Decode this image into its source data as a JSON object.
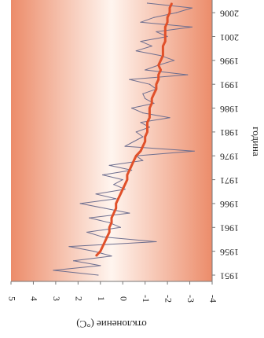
{
  "chart_data": {
    "type": "line",
    "orientation": "rotated-90-clockwise",
    "xlabel": "година",
    "ylabel": "отклонение (°C)",
    "xlim": [
      1951,
      2008
    ],
    "ylim": [
      -4,
      5
    ],
    "x_ticks": [
      1951,
      1956,
      1961,
      1966,
      1971,
      1976,
      1981,
      1986,
      1991,
      1996,
      2001,
      2006
    ],
    "y_ticks": [
      -4,
      -3,
      -2,
      -1,
      0,
      1,
      2,
      3,
      4,
      5
    ],
    "y_tick_labels": [
      "-4",
      "-3",
      "-2",
      "-1",
      "0",
      "1",
      "2",
      "3",
      "4",
      "5"
    ],
    "grid": false,
    "colors": {
      "annual_line": "#6f6f8f",
      "smoothed_line": "#e0502a",
      "band_edge": "#ec8c6a",
      "band_center": "#fff5ef"
    },
    "series": [
      {
        "style": "thin",
        "x": [
          1951,
          1952,
          1953,
          1954,
          1955,
          1956,
          1957,
          1958,
          1959,
          1960,
          1961,
          1962,
          1963,
          1964,
          1965,
          1966,
          1967,
          1968,
          1969,
          1970,
          1971,
          1972,
          1973,
          1974,
          1975,
          1976,
          1977,
          1978,
          1979,
          1980,
          1981,
          1982,
          1983,
          1984,
          1985,
          1986,
          1987,
          1988,
          1989,
          1990,
          1991,
          1992,
          1993,
          1994,
          1995,
          1996,
          1997,
          1998,
          1999,
          2000,
          2001,
          2002,
          2003,
          2004,
          2005,
          2006,
          2007,
          2008
        ],
        "values": [
          1.1,
          3.1,
          1.0,
          2.2,
          0.5,
          1.3,
          2.4,
          -1.5,
          0.9,
          1.6,
          0.1,
          0.6,
          1.5,
          -0.3,
          0.8,
          1.9,
          0.3,
          1.2,
          -0.1,
          0.4,
          0.0,
          0.9,
          -0.4,
          0.6,
          -0.9,
          -0.6,
          -3.2,
          -0.1,
          -0.5,
          -0.9,
          -0.6,
          -1.2,
          -0.8,
          -2.1,
          -0.9,
          -0.4,
          -1.4,
          -1.0,
          -0.9,
          -1.5,
          -1.2,
          -0.3,
          -2.9,
          -1.0,
          -1.6,
          -2.3,
          -1.7,
          -0.6,
          -1.3,
          -0.8,
          -2.0,
          -1.5,
          -3.1,
          -0.8,
          -1.4,
          -2.4,
          -3.1,
          -1.1
        ]
      },
      {
        "style": "thick",
        "x": [
          1955,
          1956,
          1957,
          1958,
          1959,
          1960,
          1961,
          1962,
          1963,
          1964,
          1965,
          1966,
          1967,
          1968,
          1969,
          1970,
          1971,
          1972,
          1973,
          1974,
          1975,
          1976,
          1977,
          1978,
          1979,
          1980,
          1981,
          1982,
          1983,
          1984,
          1985,
          1986,
          1987,
          1988,
          1989,
          1990,
          1991,
          1992,
          1993,
          1994,
          1995,
          1996,
          1997,
          1998,
          1999,
          2000,
          2001,
          2002,
          2003,
          2004,
          2005,
          2006,
          2007,
          2008
        ],
        "values": [
          1.2,
          1.0,
          0.9,
          0.8,
          0.7,
          0.6,
          0.6,
          0.5,
          0.5,
          0.4,
          0.3,
          0.3,
          0.2,
          0.1,
          0.0,
          -0.1,
          -0.2,
          -0.2,
          -0.3,
          -0.4,
          -0.5,
          -0.6,
          -0.8,
          -0.9,
          -1.0,
          -1.0,
          -1.1,
          -1.1,
          -1.1,
          -1.2,
          -1.2,
          -1.2,
          -1.3,
          -1.3,
          -1.4,
          -1.5,
          -1.5,
          -1.6,
          -1.6,
          -1.7,
          -1.6,
          -1.7,
          -1.8,
          -1.8,
          -1.8,
          -1.9,
          -1.9,
          -1.9,
          -1.9,
          -2.0,
          -2.0,
          -2.1,
          -2.1,
          -2.2
        ]
      }
    ]
  }
}
